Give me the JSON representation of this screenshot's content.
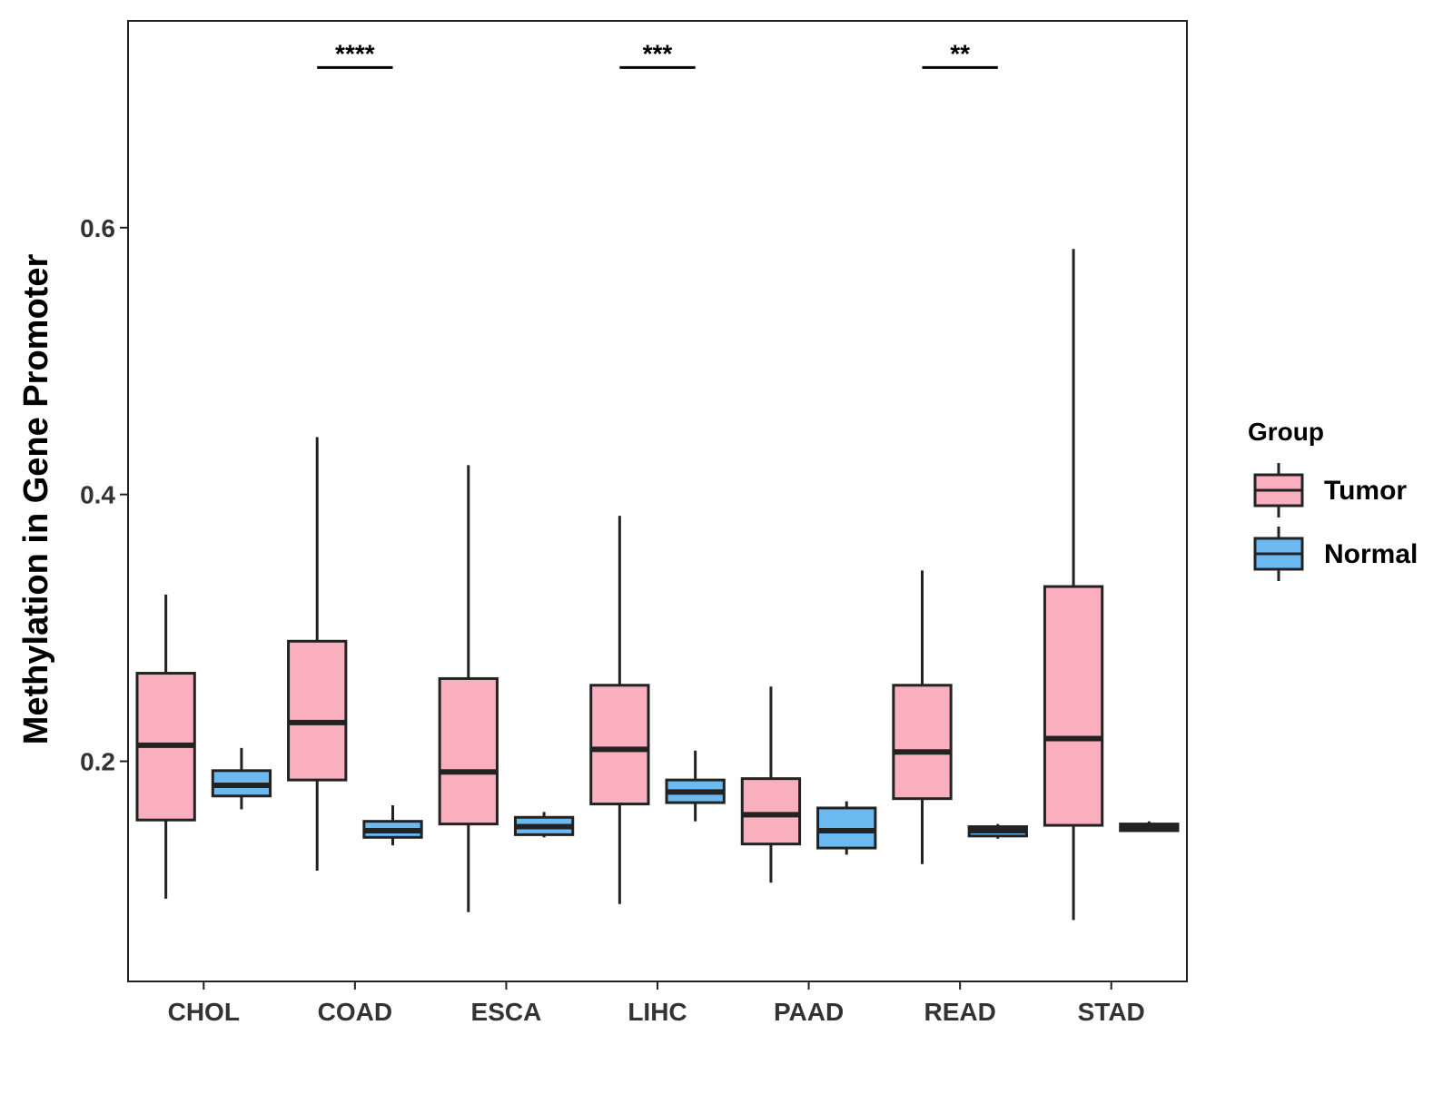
{
  "chart_data": {
    "type": "boxplot",
    "title": "",
    "xlabel": "",
    "ylabel": "Methylation in Gene Promoter",
    "ylim": [
      0.035,
      0.755
    ],
    "yticks": [
      0.2,
      0.4,
      0.6
    ],
    "ytick_labels": [
      "0.2",
      "0.4",
      "0.6"
    ],
    "grid": false,
    "legend": {
      "title": "Group",
      "position": "right",
      "entries": [
        "Tumor",
        "Normal"
      ]
    },
    "colors": {
      "Tumor": "#FAAFBE",
      "Normal": "#6CB9F2",
      "outline": "#222222"
    },
    "categories": [
      "CHOL",
      "COAD",
      "ESCA",
      "LIHC",
      "PAAD",
      "READ",
      "STAD"
    ],
    "series": [
      {
        "name": "Tumor",
        "boxes": [
          {
            "min": 0.097,
            "q1": 0.156,
            "median": 0.212,
            "q3": 0.266,
            "max": 0.325
          },
          {
            "min": 0.118,
            "q1": 0.186,
            "median": 0.229,
            "q3": 0.29,
            "max": 0.443
          },
          {
            "min": 0.087,
            "q1": 0.153,
            "median": 0.192,
            "q3": 0.262,
            "max": 0.422
          },
          {
            "min": 0.093,
            "q1": 0.168,
            "median": 0.209,
            "q3": 0.257,
            "max": 0.384
          },
          {
            "min": 0.109,
            "q1": 0.138,
            "median": 0.16,
            "q3": 0.187,
            "max": 0.256
          },
          {
            "min": 0.123,
            "q1": 0.172,
            "median": 0.207,
            "q3": 0.257,
            "max": 0.343
          },
          {
            "min": 0.081,
            "q1": 0.152,
            "median": 0.217,
            "q3": 0.331,
            "max": 0.584
          }
        ]
      },
      {
        "name": "Normal",
        "boxes": [
          {
            "min": 0.164,
            "q1": 0.174,
            "median": 0.182,
            "q3": 0.193,
            "max": 0.21
          },
          {
            "min": 0.137,
            "q1": 0.143,
            "median": 0.148,
            "q3": 0.155,
            "max": 0.167
          },
          {
            "min": 0.143,
            "q1": 0.145,
            "median": 0.151,
            "q3": 0.158,
            "max": 0.162
          },
          {
            "min": 0.155,
            "q1": 0.169,
            "median": 0.177,
            "q3": 0.186,
            "max": 0.208
          },
          {
            "min": 0.13,
            "q1": 0.135,
            "median": 0.148,
            "q3": 0.165,
            "max": 0.17
          },
          {
            "min": 0.142,
            "q1": 0.144,
            "median": 0.148,
            "q3": 0.151,
            "max": 0.153
          },
          {
            "min": 0.147,
            "q1": 0.148,
            "median": 0.15,
            "q3": 0.153,
            "max": 0.155
          }
        ]
      }
    ],
    "annotations": [
      {
        "category": "COAD",
        "label": "****",
        "y": 0.72
      },
      {
        "category": "LIHC",
        "label": "***",
        "y": 0.72
      },
      {
        "category": "READ",
        "label": "**",
        "y": 0.72
      }
    ]
  }
}
